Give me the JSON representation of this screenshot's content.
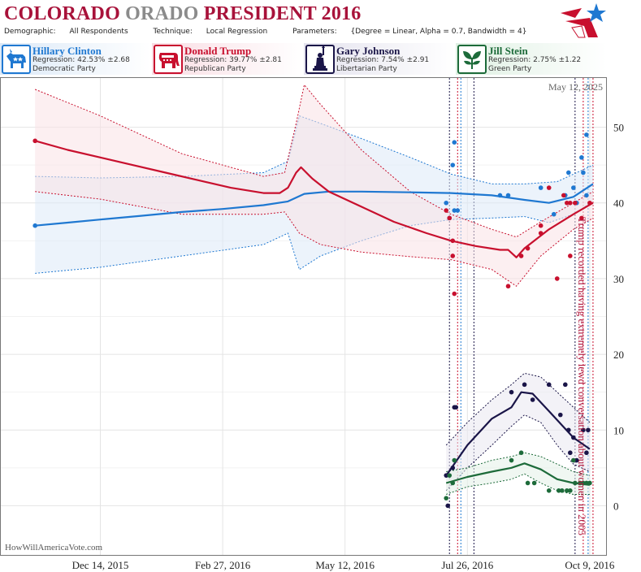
{
  "header": {
    "title_part1": "COLORADO",
    "title_part2": "ORADO",
    "title_part3": "PRESIDENT 2016",
    "demographic_label": "Demographic:",
    "demographic_value": "All Respondents",
    "technique_label": "Technique:",
    "technique_value": "Local Regression",
    "parameters_label": "Parameters:",
    "parameters_value": "{Degree = Linear, Alpha = 0.7, Bandwidth = 4}"
  },
  "candidates": [
    {
      "name": "Hillary Clinton",
      "stat": "Regression: 42.53% ±2.68",
      "party": "Democratic Party",
      "color": "#1f78d1",
      "icon": "donkey-icon"
    },
    {
      "name": "Donald Trump",
      "stat": "Regression: 39.77% ±2.81",
      "party": "Republican Party",
      "color": "#c8102e",
      "icon": "elephant-icon"
    },
    {
      "name": "Gary Johnson",
      "stat": "Regression: 7.54% ±2.91",
      "party": "Libertarian Party",
      "color": "#1a1548",
      "icon": "liberty-statue-icon"
    },
    {
      "name": "Jill Stein",
      "stat": "Regression: 2.75% ±1.22",
      "party": "Green Party",
      "color": "#1d6b3a",
      "icon": "leaf-icon"
    }
  ],
  "chart_data": {
    "type": "line",
    "date_stamp": "May 12, 2025",
    "watermark": "HowWillAmericaVote.com",
    "annotation": "Trump recorded having extremely lewd conversation about women in 2005",
    "x_tick_labels": [
      "Dec 14, 2015",
      "Feb 27, 2016",
      "May 12, 2016",
      "Jul 26, 2016",
      "Oct 9, 2016"
    ],
    "x_ticks_day": [
      0,
      75,
      150,
      225,
      300
    ],
    "x_range_day": [
      -61,
      310
    ],
    "y_ticks": [
      0,
      10,
      20,
      30,
      40,
      50
    ],
    "ylim": [
      -6.5,
      56.5
    ],
    "event_lines_day": [
      214,
      219,
      221,
      229,
      291,
      296,
      299,
      302
    ],
    "series": [
      {
        "name": "Hillary Clinton",
        "color": "#1f78d1",
        "fill": "#dce9f7",
        "line": [
          [
            -40,
            37
          ],
          [
            -20,
            37.4
          ],
          [
            0,
            37.8
          ],
          [
            25,
            38.3
          ],
          [
            50,
            38.8
          ],
          [
            75,
            39.2
          ],
          [
            100,
            39.7
          ],
          [
            115,
            40.2
          ],
          [
            125,
            41.2
          ],
          [
            140,
            41.5
          ],
          [
            160,
            41.5
          ],
          [
            190,
            41.4
          ],
          [
            215,
            41.3
          ],
          [
            240,
            41
          ],
          [
            260,
            40.4
          ],
          [
            275,
            40
          ],
          [
            290,
            40.8
          ],
          [
            302,
            42.5
          ]
        ],
        "upper": [
          [
            -40,
            43.5
          ],
          [
            0,
            43.3
          ],
          [
            50,
            43.5
          ],
          [
            100,
            44
          ],
          [
            115,
            45.5
          ],
          [
            122,
            51.5
          ],
          [
            135,
            50.5
          ],
          [
            160,
            48.5
          ],
          [
            190,
            46
          ],
          [
            215,
            43.8
          ],
          [
            240,
            42.5
          ],
          [
            260,
            42.5
          ],
          [
            280,
            42.8
          ],
          [
            302,
            45
          ]
        ],
        "lower": [
          [
            -40,
            30.7
          ],
          [
            0,
            31.5
          ],
          [
            50,
            33
          ],
          [
            100,
            34.5
          ],
          [
            115,
            36
          ],
          [
            122,
            31.2
          ],
          [
            135,
            33
          ],
          [
            160,
            35
          ],
          [
            190,
            37
          ],
          [
            215,
            37.8
          ],
          [
            240,
            38
          ],
          [
            260,
            38.2
          ],
          [
            275,
            37.4
          ],
          [
            290,
            38.5
          ],
          [
            302,
            40.2
          ]
        ],
        "points": [
          [
            -40,
            37
          ],
          [
            212,
            40
          ],
          [
            214,
            38
          ],
          [
            216,
            45
          ],
          [
            217,
            48
          ],
          [
            217,
            39
          ],
          [
            219,
            39
          ],
          [
            245,
            41
          ],
          [
            250,
            41
          ],
          [
            270,
            42
          ],
          [
            278,
            38.5
          ],
          [
            285,
            41
          ],
          [
            287,
            44
          ],
          [
            290,
            42
          ],
          [
            292,
            40
          ],
          [
            295,
            46
          ],
          [
            296,
            44
          ],
          [
            298,
            49
          ],
          [
            298,
            41
          ]
        ]
      },
      {
        "name": "Donald Trump",
        "color": "#c8102e",
        "fill": "#f9e1e6",
        "line": [
          [
            -40,
            48.2
          ],
          [
            -20,
            47
          ],
          [
            0,
            46
          ],
          [
            20,
            45
          ],
          [
            40,
            44
          ],
          [
            60,
            43
          ],
          [
            80,
            42
          ],
          [
            100,
            41.3
          ],
          [
            110,
            41.3
          ],
          [
            115,
            42
          ],
          [
            120,
            44
          ],
          [
            123,
            44.7
          ],
          [
            130,
            43.2
          ],
          [
            140,
            41.5
          ],
          [
            160,
            39.5
          ],
          [
            180,
            37.5
          ],
          [
            200,
            36
          ],
          [
            215,
            35
          ],
          [
            230,
            34.3
          ],
          [
            245,
            33.8
          ],
          [
            250,
            33.8
          ],
          [
            255,
            32.8
          ],
          [
            260,
            34
          ],
          [
            275,
            36.5
          ],
          [
            290,
            38.5
          ],
          [
            302,
            40
          ]
        ],
        "upper": [
          [
            -40,
            55
          ],
          [
            0,
            51.5
          ],
          [
            50,
            46.5
          ],
          [
            100,
            43.5
          ],
          [
            113,
            44
          ],
          [
            120,
            50.5
          ],
          [
            125,
            55.6
          ],
          [
            135,
            53
          ],
          [
            160,
            47
          ],
          [
            190,
            41.5
          ],
          [
            215,
            38.5
          ],
          [
            240,
            36.5
          ],
          [
            255,
            35.5
          ],
          [
            270,
            37.5
          ],
          [
            290,
            40
          ],
          [
            302,
            41.5
          ]
        ],
        "lower": [
          [
            -40,
            41.5
          ],
          [
            0,
            40.5
          ],
          [
            50,
            38.5
          ],
          [
            100,
            38.5
          ],
          [
            113,
            38.8
          ],
          [
            122,
            36
          ],
          [
            135,
            34.5
          ],
          [
            160,
            33.5
          ],
          [
            190,
            32.9
          ],
          [
            215,
            32.5
          ],
          [
            240,
            31.2
          ],
          [
            255,
            29
          ],
          [
            270,
            33
          ],
          [
            290,
            36.5
          ],
          [
            302,
            38
          ]
        ],
        "points": [
          [
            -40,
            48.2
          ],
          [
            212,
            39
          ],
          [
            214,
            38
          ],
          [
            216,
            33
          ],
          [
            216,
            35
          ],
          [
            217,
            28
          ],
          [
            250,
            29
          ],
          [
            258,
            33
          ],
          [
            262,
            34
          ],
          [
            270,
            36
          ],
          [
            270,
            37
          ],
          [
            275,
            42
          ],
          [
            280,
            30
          ],
          [
            284,
            41
          ],
          [
            286,
            40
          ],
          [
            288,
            40
          ],
          [
            288,
            33
          ],
          [
            291,
            40
          ],
          [
            295,
            38
          ],
          [
            300,
            40
          ]
        ]
      },
      {
        "name": "Gary Johnson",
        "color": "#1a1548",
        "fill": "#e9e8f1",
        "line": [
          [
            212,
            4
          ],
          [
            225,
            8
          ],
          [
            240,
            11.5
          ],
          [
            252,
            13
          ],
          [
            258,
            15
          ],
          [
            265,
            14.8
          ],
          [
            275,
            12.5
          ],
          [
            290,
            9
          ],
          [
            300,
            7.5
          ]
        ],
        "upper": [
          [
            212,
            8
          ],
          [
            225,
            11
          ],
          [
            240,
            14
          ],
          [
            252,
            16
          ],
          [
            260,
            17.5
          ],
          [
            270,
            17
          ],
          [
            280,
            15
          ],
          [
            290,
            13
          ],
          [
            300,
            11
          ]
        ],
        "lower": [
          [
            212,
            2
          ],
          [
            225,
            5
          ],
          [
            240,
            8
          ],
          [
            252,
            10.5
          ],
          [
            260,
            12
          ],
          [
            270,
            11
          ],
          [
            280,
            8
          ],
          [
            290,
            5.5
          ],
          [
            300,
            4.5
          ]
        ],
        "points": [
          [
            212,
            4
          ],
          [
            213,
            0
          ],
          [
            216,
            5
          ],
          [
            217,
            13
          ],
          [
            218,
            13
          ],
          [
            252,
            15
          ],
          [
            260,
            16
          ],
          [
            265,
            14
          ],
          [
            275,
            16
          ],
          [
            282,
            12
          ],
          [
            285,
            16
          ],
          [
            287,
            10
          ],
          [
            288,
            7
          ],
          [
            290,
            9
          ],
          [
            292,
            6
          ],
          [
            296,
            10
          ],
          [
            298,
            7
          ],
          [
            299,
            10
          ]
        ]
      },
      {
        "name": "Jill Stein",
        "color": "#1d6b3a",
        "fill": "#e3f1e7",
        "line": [
          [
            212,
            3
          ],
          [
            225,
            3.8
          ],
          [
            240,
            4.5
          ],
          [
            252,
            5
          ],
          [
            260,
            5.6
          ],
          [
            270,
            4.8
          ],
          [
            280,
            3.5
          ],
          [
            290,
            3
          ],
          [
            300,
            2.75
          ]
        ],
        "upper": [
          [
            212,
            4.5
          ],
          [
            225,
            5
          ],
          [
            240,
            6
          ],
          [
            252,
            6.5
          ],
          [
            260,
            7
          ],
          [
            270,
            6.5
          ],
          [
            280,
            5.5
          ],
          [
            290,
            4.5
          ],
          [
            300,
            4
          ]
        ],
        "lower": [
          [
            212,
            1.5
          ],
          [
            225,
            2.5
          ],
          [
            240,
            3
          ],
          [
            252,
            3.5
          ],
          [
            260,
            4.2
          ],
          [
            270,
            3
          ],
          [
            280,
            2
          ],
          [
            290,
            1.5
          ],
          [
            300,
            1.5
          ]
        ],
        "points": [
          [
            212,
            1
          ],
          [
            214,
            4
          ],
          [
            216,
            3
          ],
          [
            217,
            6
          ],
          [
            252,
            6
          ],
          [
            258,
            7
          ],
          [
            262,
            3
          ],
          [
            266,
            3
          ],
          [
            275,
            2
          ],
          [
            281,
            2
          ],
          [
            283,
            2
          ],
          [
            286,
            2
          ],
          [
            288,
            2
          ],
          [
            290,
            6
          ],
          [
            291,
            3
          ],
          [
            294,
            3
          ],
          [
            296,
            3
          ],
          [
            298,
            3
          ],
          [
            300,
            3
          ]
        ]
      }
    ]
  }
}
